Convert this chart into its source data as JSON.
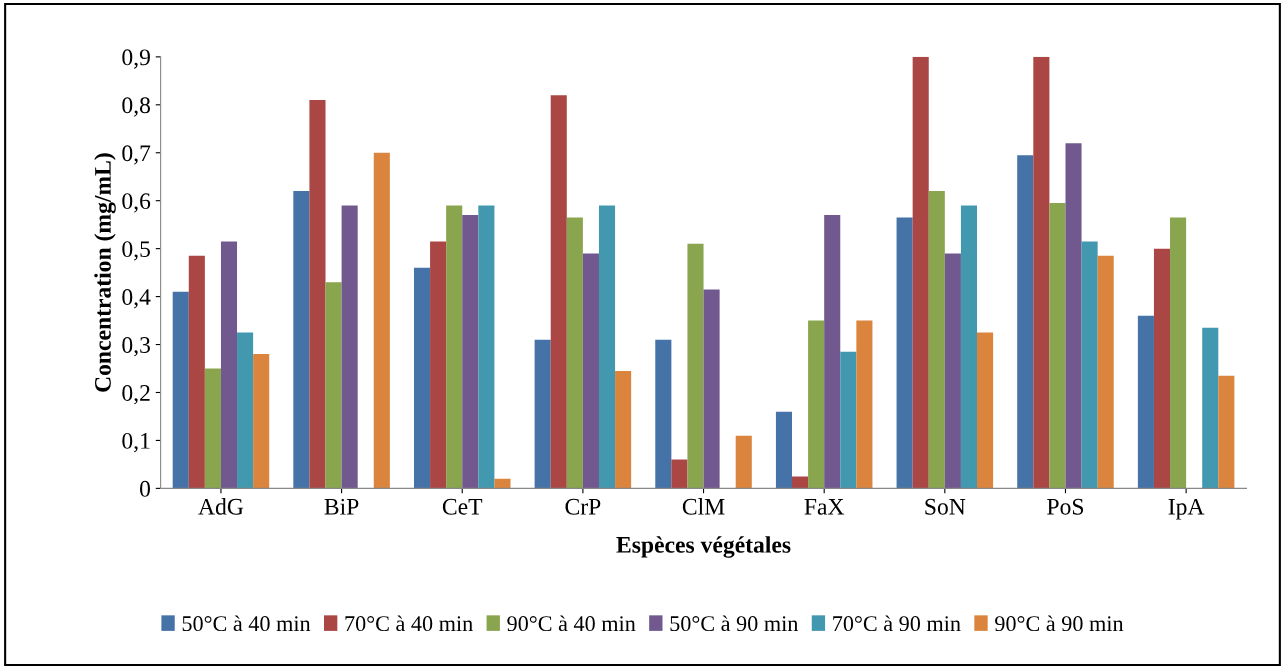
{
  "chart_data": {
    "type": "bar",
    "xlabel": "Espèces végétales",
    "ylabel": "Concentration (mg/mL)",
    "categories": [
      "AdG",
      "BiP",
      "CeT",
      "CrP",
      "ClM",
      "FaX",
      "SoN",
      "PoS",
      "IpA"
    ],
    "series": [
      {
        "name": "50°C à 40 min",
        "color": "#4572a7",
        "values": [
          0.41,
          0.62,
          0.46,
          0.31,
          0.31,
          0.16,
          0.565,
          0.695,
          0.36
        ]
      },
      {
        "name": "70°C à 40 min",
        "color": "#aa4643",
        "values": [
          0.485,
          0.81,
          0.515,
          0.82,
          0.06,
          0.025,
          0.9,
          0.9,
          0.5
        ]
      },
      {
        "name": "90°C à 40 min",
        "color": "#89a54e",
        "values": [
          0.25,
          0.43,
          0.59,
          0.565,
          0.51,
          0.35,
          0.62,
          0.595,
          0.565
        ]
      },
      {
        "name": "50°C à 90 min",
        "color": "#71588f",
        "values": [
          0.515,
          0.59,
          0.57,
          0.49,
          0.415,
          0.57,
          0.49,
          0.72,
          0
        ]
      },
      {
        "name": "70°C à 90 min",
        "color": "#4198af",
        "values": [
          0.325,
          0,
          0.59,
          0.59,
          0,
          0.285,
          0.59,
          0.515,
          0.335
        ]
      },
      {
        "name": "90°C à 90 min",
        "color": "#db843d",
        "values": [
          0.28,
          0.7,
          0.02,
          0.245,
          0.11,
          0.35,
          0.325,
          0.485,
          0.235
        ]
      }
    ],
    "ylim": [
      0,
      0.9
    ],
    "yticks": [
      0,
      {
        "value": 0.1,
        "label": "0,1"
      },
      {
        "value": 0.2,
        "label": "0,2"
      },
      {
        "value": 0.3,
        "label": "0,3"
      },
      {
        "value": 0.4,
        "label": "0,4"
      },
      {
        "value": 0.5,
        "label": "0,5"
      },
      {
        "value": 0.6,
        "label": "0,6"
      },
      {
        "value": 0.7,
        "label": "0,7"
      },
      {
        "value": 0.8,
        "label": "0,8"
      },
      {
        "value": 0.9,
        "label": "0,9"
      }
    ],
    "grid": false,
    "legend": "bottom"
  }
}
